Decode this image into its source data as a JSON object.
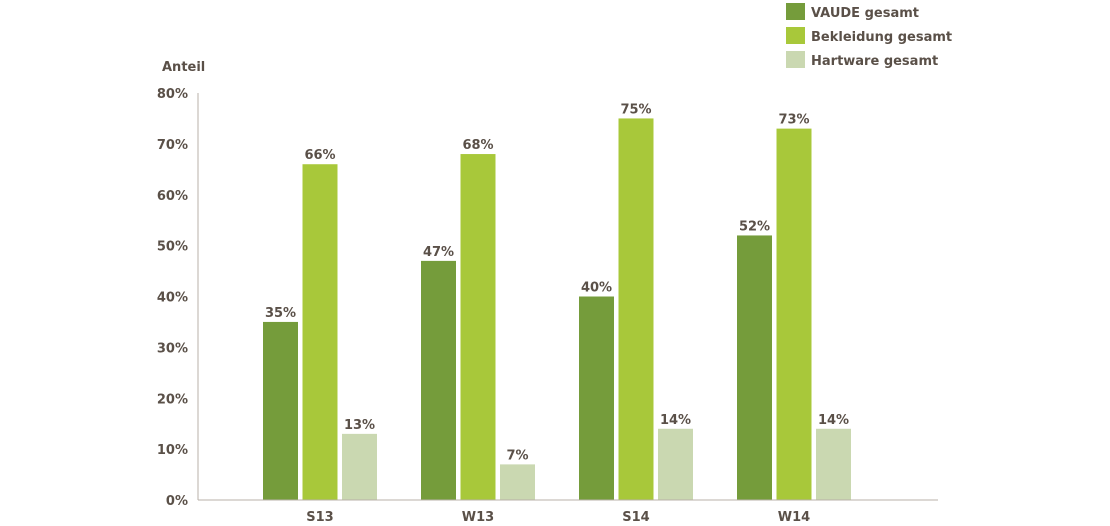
{
  "chart_data": {
    "type": "bar",
    "ylabel": "Anteil",
    "xlabel": "",
    "title": "",
    "categories": [
      "S13",
      "W13",
      "S14",
      "W14"
    ],
    "ylim": [
      0,
      80
    ],
    "yticks": [
      0,
      10,
      20,
      30,
      40,
      50,
      60,
      70,
      80
    ],
    "ytick_labels": [
      "0%",
      "10%",
      "20%",
      "30%",
      "40%",
      "50%",
      "60%",
      "70%",
      "80%"
    ],
    "value_suffix": "%",
    "grid": false,
    "legend_position": "top-right",
    "series": [
      {
        "name": "VAUDE gesamt",
        "color": "#759c3b",
        "values": [
          35,
          47,
          40,
          52
        ]
      },
      {
        "name": "Bekleidung gesamt",
        "color": "#a8c83a",
        "values": [
          66,
          68,
          75,
          73
        ]
      },
      {
        "name": "Hartware gesamt",
        "color": "#cad8b1",
        "values": [
          13,
          7,
          14,
          14
        ]
      }
    ]
  }
}
